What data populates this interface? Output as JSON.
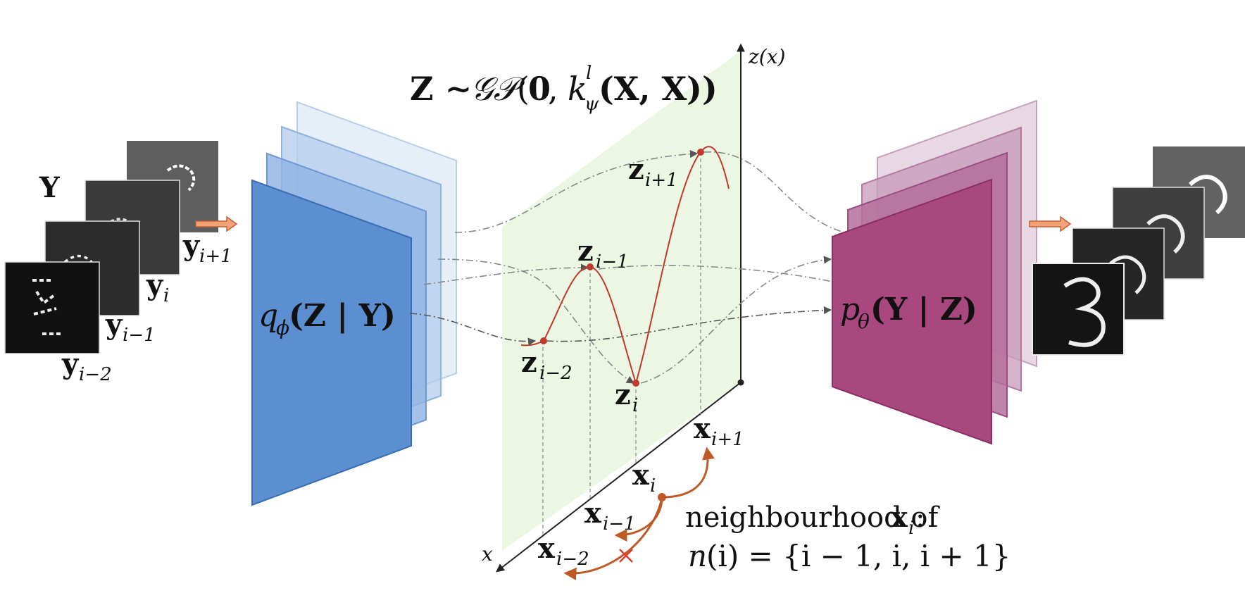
{
  "colors": {
    "encoder_blue": "#5b8fd1",
    "decoder_magenta": "#a8487f",
    "gp_plane_green": "#e8f6de",
    "curve_red": "#c0392b",
    "arrow_orange": "#bf5a26",
    "frame_orange": "#e9875a",
    "cross_red": "#e03a2b"
  },
  "labels": {
    "Y_set": "Y",
    "y_next": {
      "base": "y",
      "sub": "i+1"
    },
    "y_i": {
      "base": "y",
      "sub": "i"
    },
    "y_prev": {
      "base": "y",
      "sub": "i−1"
    },
    "y_prev2": {
      "base": "y",
      "sub": "i−2"
    },
    "encoder": {
      "q": "q",
      "phi": "ϕ",
      "args": "(Z | Y)"
    },
    "decoder": {
      "p": "p",
      "theta": "θ",
      "args": "(Y | Z)"
    },
    "prior": {
      "lhs": "Z ∼ ",
      "gp": "𝒢𝒫",
      "args_open": "(",
      "zero": "0",
      "comma": ", ",
      "k": "k",
      "k_sup": "l",
      "k_sub": "ψ",
      "kargs": "(X, X))"
    },
    "z_axis": "z(x)",
    "x_axis": "x",
    "z_next": {
      "base": "z",
      "sub": "i+1"
    },
    "z_prev": {
      "base": "z",
      "sub": "i−1"
    },
    "z_prev2": {
      "base": "z",
      "sub": "i−2"
    },
    "z_i": {
      "base": "z",
      "sub": "i"
    },
    "x_next": {
      "base": "x",
      "sub": "i+1"
    },
    "x_i": {
      "base": "x",
      "sub": "i"
    },
    "x_prev": {
      "base": "x",
      "sub": "i−1"
    },
    "x_prev2": {
      "base": "x",
      "sub": "i−2"
    },
    "neighbourhood_line1": {
      "text": "neighbourhood of ",
      "x": "x",
      "sub": "i",
      "colon": " :"
    },
    "neighbourhood_line2": {
      "n": "n",
      "rest": "(i) = {i − 1, i, i + 1}"
    }
  },
  "icons": {
    "input_frames": "mnist-digit-frames",
    "output_frames": "mnist-digit-frames-reconstructed",
    "cross": "cross-mark-icon"
  }
}
